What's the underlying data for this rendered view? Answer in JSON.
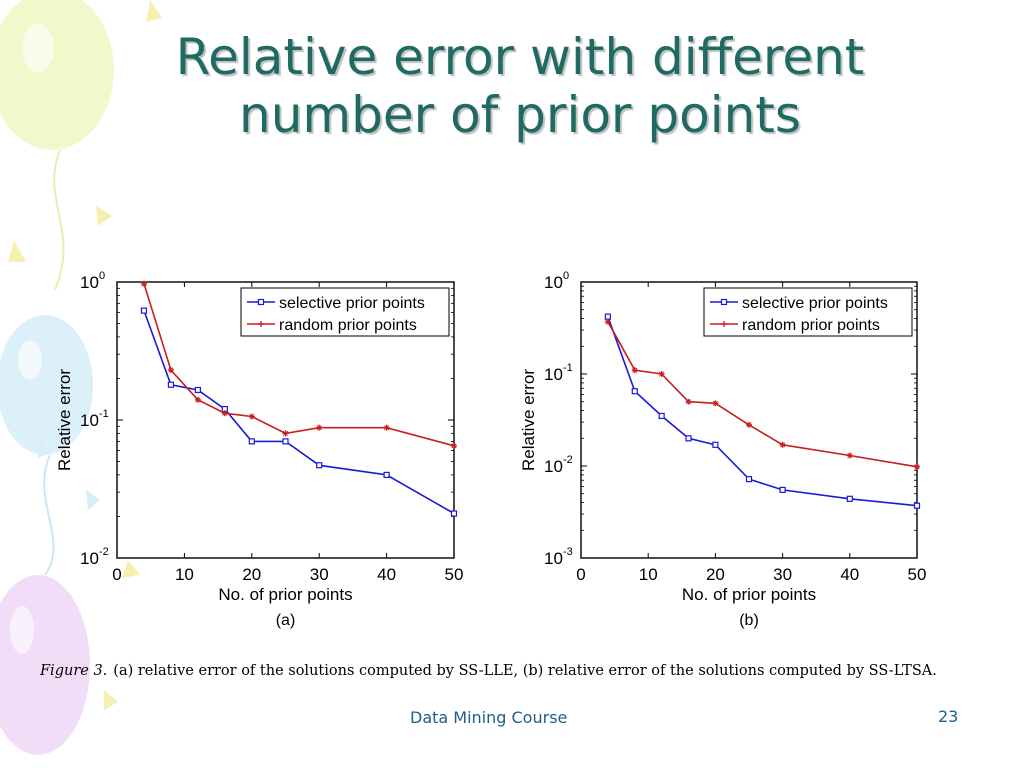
{
  "slide": {
    "title_line1": "Relative error with different",
    "title_line2": "number of prior points",
    "caption_label": "Figure 3.",
    "caption_text": "(a) relative error of the solutions computed by SS-LLE, (b) relative error of the solutions computed by SS-LTSA.",
    "footer_course": "Data Mining Course",
    "footer_page": "23"
  },
  "colors": {
    "title": "#1f6b63",
    "footer": "#1f5e86",
    "selective": "#1a1ad6",
    "random": "#c81e1e"
  },
  "chart_data": [
    {
      "type": "line",
      "sublabel": "(a)",
      "xlabel": "No. of prior points",
      "ylabel": "Relative error",
      "xlim": [
        0,
        50
      ],
      "ylim": [
        0.01,
        1
      ],
      "yscale": "log",
      "xticks": [
        "0",
        "10",
        "20",
        "30",
        "40",
        "50"
      ],
      "yticks": [
        {
          "base": "10",
          "exp": "0"
        },
        {
          "base": "10",
          "exp": "-1"
        },
        {
          "base": "10",
          "exp": "-2"
        }
      ],
      "grid": false,
      "legend_position": "top-right",
      "series": [
        {
          "name": "selective prior points",
          "color": "#1a1ad6",
          "marker": "square",
          "x": [
            4,
            8,
            12,
            16,
            20,
            25,
            30,
            40,
            50
          ],
          "y": [
            0.62,
            0.18,
            0.165,
            0.12,
            0.07,
            0.07,
            0.047,
            0.04,
            0.021
          ]
        },
        {
          "name": "random prior points",
          "color": "#c81e1e",
          "marker": "star",
          "x": [
            4,
            8,
            12,
            16,
            20,
            25,
            30,
            40,
            50
          ],
          "y": [
            0.97,
            0.23,
            0.14,
            0.112,
            0.106,
            0.08,
            0.088,
            0.088,
            0.065
          ]
        }
      ]
    },
    {
      "type": "line",
      "sublabel": "(b)",
      "xlabel": "No. of prior points",
      "ylabel": "Relative error",
      "xlim": [
        0,
        50
      ],
      "ylim": [
        0.001,
        1
      ],
      "yscale": "log",
      "xticks": [
        "0",
        "10",
        "20",
        "30",
        "40",
        "50"
      ],
      "yticks": [
        {
          "base": "10",
          "exp": "0"
        },
        {
          "base": "10",
          "exp": "-1"
        },
        {
          "base": "10",
          "exp": "-2"
        },
        {
          "base": "10",
          "exp": "-3"
        }
      ],
      "grid": false,
      "legend_position": "top-right",
      "series": [
        {
          "name": "selective prior points",
          "color": "#1a1ad6",
          "marker": "square",
          "x": [
            4,
            8,
            12,
            16,
            20,
            25,
            30,
            40,
            50
          ],
          "y": [
            0.42,
            0.065,
            0.035,
            0.02,
            0.017,
            0.0072,
            0.0055,
            0.0044,
            0.0037
          ]
        },
        {
          "name": "random prior points",
          "color": "#c81e1e",
          "marker": "star",
          "x": [
            4,
            8,
            12,
            16,
            20,
            25,
            30,
            40,
            50
          ],
          "y": [
            0.37,
            0.11,
            0.1,
            0.05,
            0.048,
            0.028,
            0.017,
            0.013,
            0.0098
          ]
        }
      ]
    }
  ]
}
